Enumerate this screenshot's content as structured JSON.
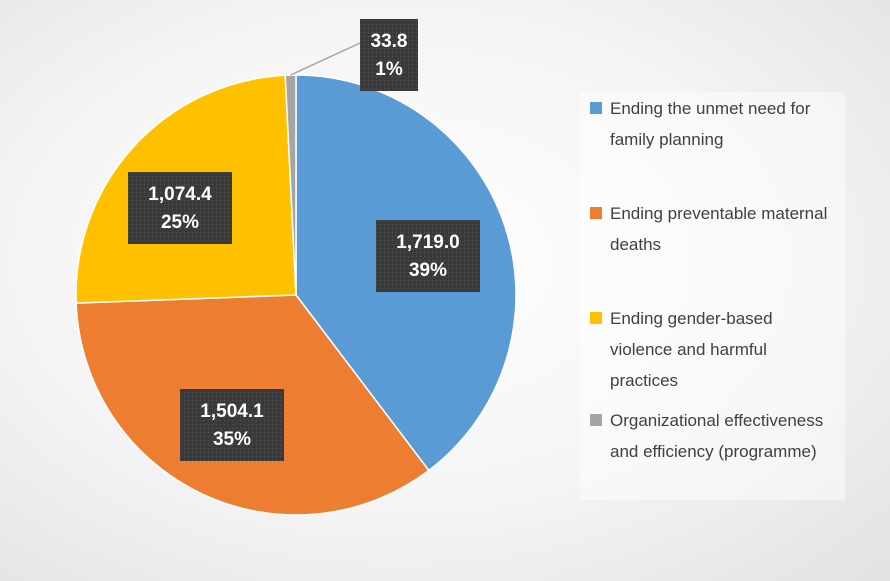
{
  "chart_data": {
    "type": "pie",
    "categories": [
      "Ending the unmet need for family planning",
      "Ending preventable maternal deaths",
      "Ending gender-based violence and harmful practices",
      "Organizational effectiveness and efficiency (programme)"
    ],
    "values": [
      1719.0,
      1504.1,
      1074.4,
      33.8
    ],
    "value_labels": [
      "1,719.0",
      "1,504.1",
      "1,074.4",
      "33.8"
    ],
    "percent_labels": [
      "39%",
      "35%",
      "25%",
      "1%"
    ],
    "colors": [
      "#5b9bd5",
      "#ed7d31",
      "#ffc000",
      "#a5a5a5"
    ],
    "legend": "right"
  }
}
